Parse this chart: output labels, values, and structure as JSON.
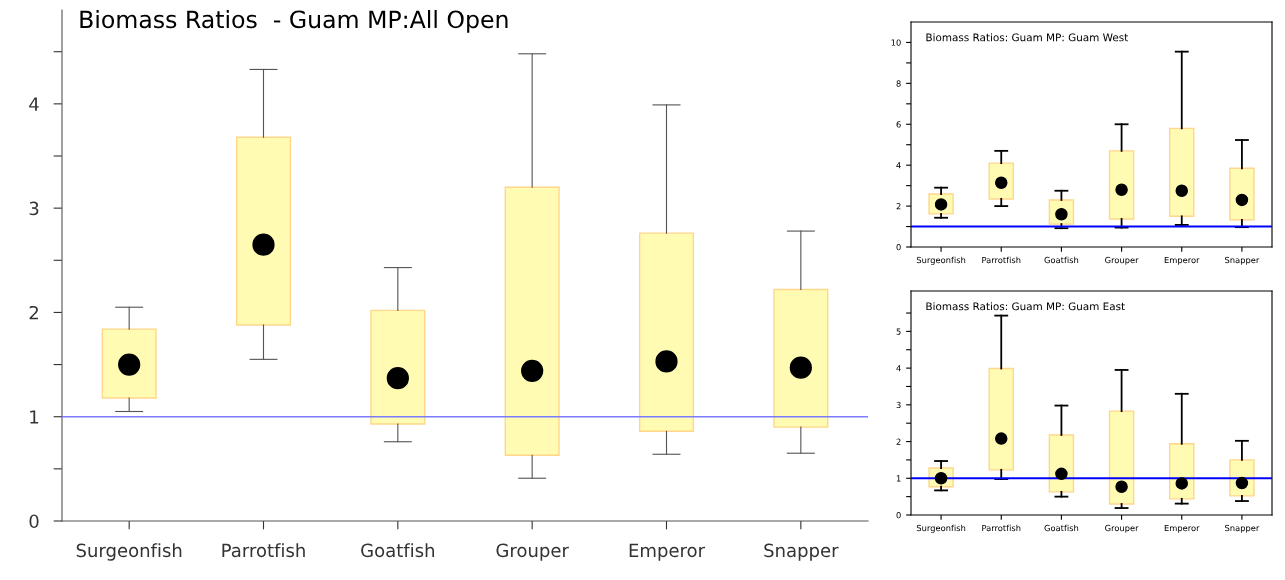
{
  "chart_data": [
    {
      "type": "box",
      "title": "Biomass Ratios  - Guam MP:All Open",
      "categories": [
        "Surgeonfish",
        "Parrotfish",
        "Goatfish",
        "Grouper",
        "Emperor",
        "Snapper"
      ],
      "boxes": [
        {
          "low": 1.05,
          "q1": 1.18,
          "median": 1.5,
          "q3": 1.84,
          "high": 2.05
        },
        {
          "low": 1.55,
          "q1": 1.88,
          "median": 2.65,
          "q3": 3.68,
          "high": 4.33
        },
        {
          "low": 0.76,
          "q1": 0.93,
          "median": 1.37,
          "q3": 2.02,
          "high": 2.43
        },
        {
          "low": 0.41,
          "q1": 0.63,
          "median": 1.44,
          "q3": 3.2,
          "high": 4.48
        },
        {
          "low": 0.64,
          "q1": 0.86,
          "median": 1.53,
          "q3": 2.76,
          "high": 3.99
        },
        {
          "low": 0.65,
          "q1": 0.9,
          "median": 1.47,
          "q3": 2.22,
          "high": 2.78
        }
      ],
      "color": "#fffbb3",
      "ylim": [
        0,
        4.9
      ],
      "yticks": [
        0,
        {
          "value": 0.5,
          "label": null
        },
        1,
        {
          "value": 1.5,
          "label": null
        },
        2,
        {
          "value": 2.5,
          "label": null
        },
        3,
        {
          "value": 3.5,
          "label": null
        },
        4,
        {
          "value": 4.5,
          "label": null
        }
      ],
      "ref_lines": [
        {
          "axis": "y",
          "value": 1,
          "label": null,
          "color": "#7b7bff"
        }
      ],
      "grid": false,
      "legend": false,
      "marker": "circle"
    },
    {
      "type": "box",
      "title": "Biomass Ratios: Guam MP: Guam West",
      "categories": [
        "Surgeonfish",
        "Parrotfish",
        "Goatfish",
        "Grouper",
        "Emperor",
        "Snapper"
      ],
      "boxes": [
        {
          "low": 1.43,
          "q1": 1.62,
          "median": 2.08,
          "q3": 2.59,
          "high": 2.9
        },
        {
          "low": 2.0,
          "q1": 2.35,
          "median": 3.14,
          "q3": 4.1,
          "high": 4.7
        },
        {
          "low": 0.92,
          "q1": 1.12,
          "median": 1.6,
          "q3": 2.3,
          "high": 2.75
        },
        {
          "low": 0.95,
          "q1": 1.37,
          "median": 2.8,
          "q3": 4.7,
          "high": 6.0
        },
        {
          "low": 1.08,
          "q1": 1.5,
          "median": 2.75,
          "q3": 5.8,
          "high": 9.55
        },
        {
          "low": 0.97,
          "q1": 1.33,
          "median": 2.3,
          "q3": 3.85,
          "high": 5.23
        }
      ],
      "color": "#fffbb3",
      "ylim": [
        0,
        11
      ],
      "yticks": [
        0,
        {
          "value": 1,
          "label": null
        },
        2,
        {
          "value": 3,
          "label": null
        },
        4,
        {
          "value": 5,
          "label": null
        },
        6,
        {
          "value": 7,
          "label": null
        },
        8,
        {
          "value": 9,
          "label": null
        },
        10
      ],
      "ref_lines": [
        {
          "axis": "y",
          "value": 1,
          "label": null,
          "color": "#0000ff"
        }
      ],
      "grid": false,
      "legend": false,
      "marker": "circle"
    },
    {
      "type": "box",
      "title": "Biomass Ratios: Guam MP: Guam East",
      "categories": [
        "Surgeonfish",
        "Parrotfish",
        "Goatfish",
        "Grouper",
        "Emperor",
        "Snapper"
      ],
      "boxes": [
        {
          "low": 0.67,
          "q1": 0.77,
          "median": 1.0,
          "q3": 1.28,
          "high": 1.47
        },
        {
          "low": 0.98,
          "q1": 1.23,
          "median": 2.08,
          "q3": 3.99,
          "high": 5.43
        },
        {
          "low": 0.5,
          "q1": 0.63,
          "median": 1.12,
          "q3": 2.18,
          "high": 2.98
        },
        {
          "low": 0.19,
          "q1": 0.3,
          "median": 0.77,
          "q3": 2.83,
          "high": 3.95
        },
        {
          "low": 0.31,
          "q1": 0.44,
          "median": 0.86,
          "q3": 1.94,
          "high": 3.3
        },
        {
          "low": 0.38,
          "q1": 0.52,
          "median": 0.87,
          "q3": 1.5,
          "high": 2.02
        }
      ],
      "color": "#fffbb3",
      "ylim": [
        0,
        6.1
      ],
      "yticks": [
        0,
        {
          "value": 0.5,
          "label": null
        },
        1,
        {
          "value": 1.5,
          "label": null
        },
        2,
        {
          "value": 2.5,
          "label": null
        },
        3,
        {
          "value": 3.5,
          "label": null
        },
        4,
        {
          "value": 4.5,
          "label": null
        },
        5,
        {
          "value": 5.5,
          "label": null
        }
      ],
      "ref_lines": [
        {
          "axis": "y",
          "value": 1,
          "label": null,
          "color": "#0000ff"
        }
      ],
      "grid": false,
      "legend": false,
      "marker": "circle"
    }
  ]
}
